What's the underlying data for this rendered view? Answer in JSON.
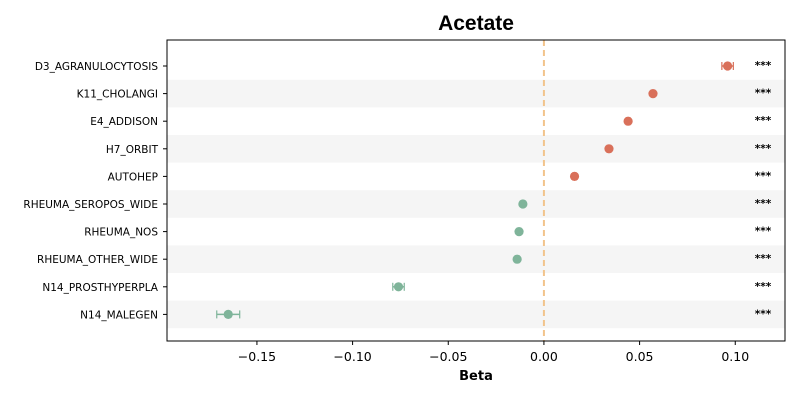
{
  "chart_data": {
    "type": "scatter",
    "title": "Acetate",
    "xlabel": "Beta",
    "ylabel": "",
    "xlim": [
      -0.197,
      0.126
    ],
    "xticks": [
      -0.15,
      -0.1,
      -0.05,
      0.0,
      0.05,
      0.1
    ],
    "xtick_labels": [
      "−0.15",
      "−0.10",
      "−0.05",
      "0.00",
      "0.05",
      "0.10"
    ],
    "reference_line_x": 0,
    "grid": false,
    "row_shading": "alternating",
    "colors": {
      "positive": "#d9705a",
      "negative": "#7fb49a",
      "reference_line": "#f2c48c",
      "row_shade": "#f5f5f5"
    },
    "categories": [
      "D3_AGRANULOCYTOSIS",
      "K11_CHOLANGI",
      "E4_ADDISON",
      "H7_ORBIT",
      "AUTOHEP",
      "RHEUMA_SEROPOS_WIDE",
      "RHEUMA_NOS",
      "RHEUMA_OTHER_WIDE",
      "N14_PROSTHYPERPLA",
      "N14_MALEGEN"
    ],
    "beta": [
      0.096,
      0.057,
      0.044,
      0.034,
      0.016,
      -0.011,
      -0.013,
      -0.014,
      -0.076,
      -0.165
    ],
    "ci_low": [
      0.093,
      0.056,
      0.043,
      0.033,
      0.015,
      -0.012,
      -0.014,
      -0.015,
      -0.079,
      -0.171
    ],
    "ci_high": [
      0.099,
      0.058,
      0.045,
      0.035,
      0.017,
      -0.01,
      -0.012,
      -0.013,
      -0.073,
      -0.159
    ],
    "significance": [
      "***",
      "***",
      "***",
      "***",
      "***",
      "***",
      "***",
      "***",
      "***",
      "***"
    ]
  }
}
